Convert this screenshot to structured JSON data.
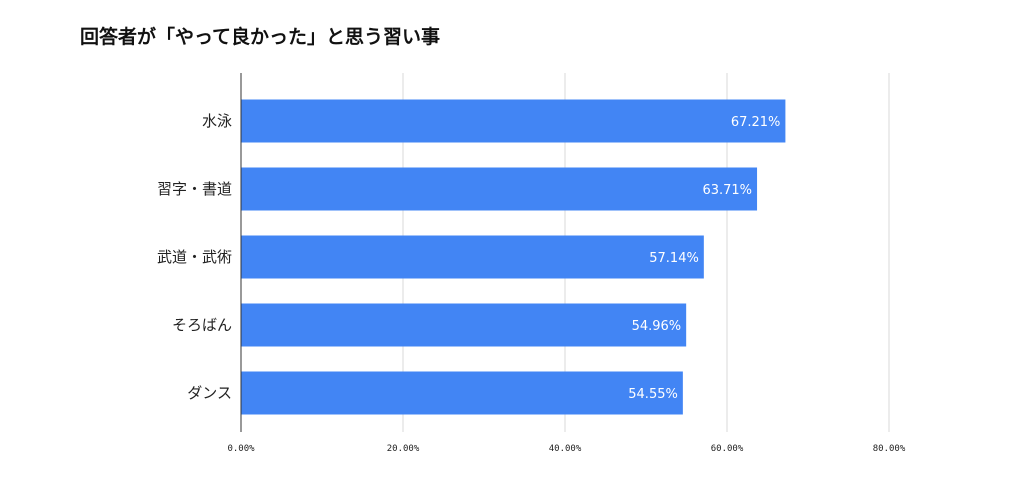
{
  "chart_data": {
    "type": "bar",
    "orientation": "horizontal",
    "title": "回答者が「やって良かった」と思う習い事",
    "categories": [
      "水泳",
      "習字・書道",
      "武道・武術",
      "そろばん",
      "ダンス"
    ],
    "values": [
      67.21,
      63.71,
      57.14,
      54.96,
      54.55
    ],
    "value_labels": [
      "67.21%",
      "63.71%",
      "57.14%",
      "54.96%",
      "54.55%"
    ],
    "xlim": [
      0,
      80
    ],
    "x_ticks": [
      0,
      20,
      40,
      60,
      80
    ],
    "x_tick_labels": [
      "0.00%",
      "20.00%",
      "40.00%",
      "60.00%",
      "80.00%"
    ],
    "grid": "vertical",
    "legend": "none",
    "bar_color": "#4285f4"
  }
}
